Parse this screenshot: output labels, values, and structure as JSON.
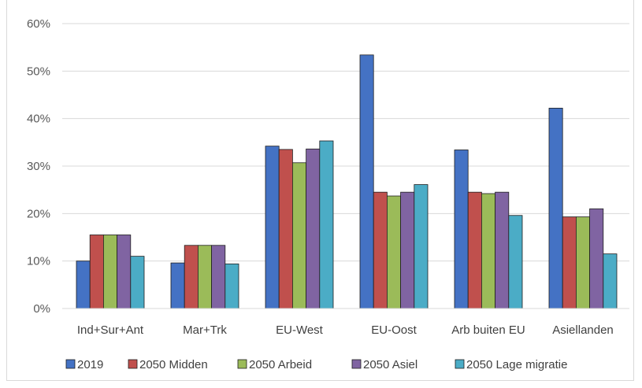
{
  "chart_data": {
    "type": "bar",
    "categories": [
      "Ind+Sur+Ant",
      "Mar+Trk",
      "EU-West",
      "EU-Oost",
      "Arb buiten EU",
      "Asiellanden"
    ],
    "series": [
      {
        "name": "2019",
        "color": "#4472c4",
        "values": [
          10,
          9.6,
          34.2,
          53.4,
          33.4,
          42.2
        ]
      },
      {
        "name": "2050 Midden",
        "color": "#c0504d",
        "values": [
          15.5,
          13.3,
          33.5,
          24.5,
          24.5,
          19.3
        ]
      },
      {
        "name": "2050 Arbeid",
        "color": "#9bbb59",
        "values": [
          15.5,
          13.3,
          30.7,
          23.7,
          24.2,
          19.3
        ]
      },
      {
        "name": "2050 Asiel",
        "color": "#8064a2",
        "values": [
          15.5,
          13.3,
          33.6,
          24.5,
          24.5,
          21.0
        ]
      },
      {
        "name": "2050 Lage migratie",
        "color": "#4bacc6",
        "values": [
          11.0,
          9.4,
          35.3,
          26.1,
          19.6,
          11.5
        ]
      }
    ],
    "yticks": [
      "0%",
      "10%",
      "20%",
      "30%",
      "40%",
      "50%",
      "60%"
    ],
    "ylim": [
      0,
      60
    ],
    "grid": true,
    "legend_position": "bottom"
  }
}
